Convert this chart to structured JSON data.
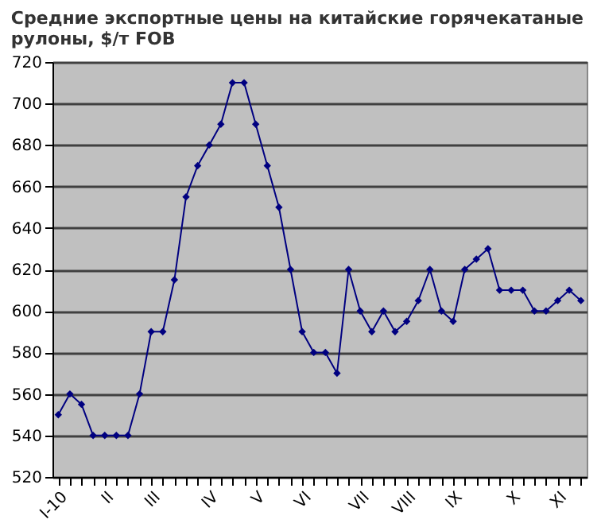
{
  "chart_data": {
    "type": "line",
    "title": "Средние экспортные цены на китайские горячекатаные рулоны, $/т FOB",
    "categories": [
      "I-10",
      null,
      null,
      null,
      "II",
      null,
      null,
      null,
      "III",
      null,
      null,
      null,
      null,
      "IV",
      null,
      null,
      null,
      "V",
      null,
      null,
      null,
      "VI",
      null,
      null,
      null,
      null,
      "VII",
      null,
      null,
      null,
      "VIII",
      null,
      null,
      null,
      "IX",
      null,
      null,
      null,
      null,
      "X",
      null,
      null,
      null,
      "XI",
      null,
      null
    ],
    "series": [
      {
        "color": "#000080",
        "values": [
          550,
          560,
          555,
          540,
          540,
          540,
          540,
          560,
          590,
          590,
          615,
          655,
          670,
          680,
          690,
          710,
          710,
          690,
          670,
          650,
          620,
          590,
          580,
          580,
          570,
          620,
          600,
          590,
          600,
          590,
          595,
          605,
          620,
          600,
          595,
          620,
          625,
          630,
          610,
          610,
          610,
          600,
          600,
          605,
          610,
          605
        ]
      }
    ],
    "ylim": [
      520,
      720
    ],
    "yticks": [
      520,
      540,
      560,
      580,
      600,
      620,
      640,
      660,
      680,
      700,
      720
    ],
    "grid": "y",
    "marker": "diamond",
    "line_style": "solid"
  }
}
